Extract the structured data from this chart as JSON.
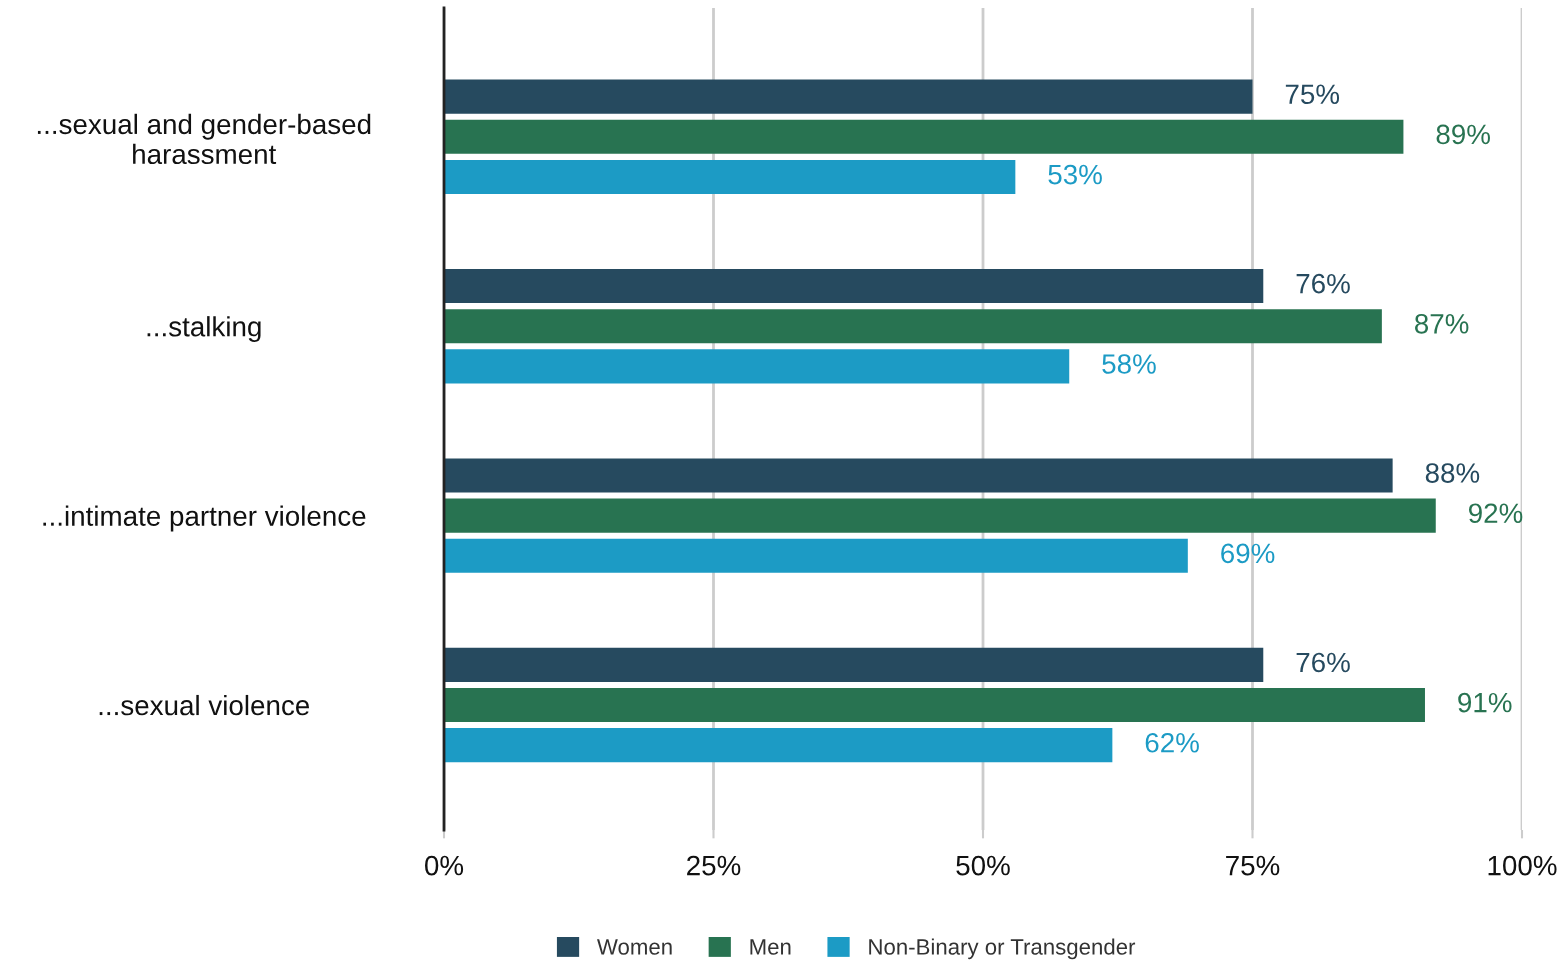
{
  "chart_data": {
    "type": "bar",
    "orientation": "horizontal",
    "categories": [
      "...sexual and gender-based\nharassment",
      "...stalking",
      "...intimate partner violence",
      "...sexual violence"
    ],
    "series": [
      {
        "name": "Women",
        "color": "#264a5f",
        "values": [
          75,
          76,
          88,
          76
        ],
        "value_labels": [
          "75%",
          "76%",
          "88%",
          "76%"
        ]
      },
      {
        "name": "Men",
        "color": "#287351",
        "values": [
          89,
          87,
          92,
          91
        ],
        "value_labels": [
          "89%",
          "87%",
          "92%",
          "91%"
        ]
      },
      {
        "name": "Non-Binary or Transgender",
        "color": "#1c9bc5",
        "values": [
          53,
          58,
          69,
          62
        ],
        "value_labels": [
          "53%",
          "58%",
          "69%",
          "62%"
        ]
      }
    ],
    "xlim": [
      0,
      100
    ],
    "xticks": [
      {
        "value": 0,
        "label": "0%"
      },
      {
        "value": 25,
        "label": "25%"
      },
      {
        "value": 50,
        "label": "50%"
      },
      {
        "value": 75,
        "label": "75%"
      },
      {
        "value": 100,
        "label": "100%"
      }
    ],
    "grid": "x",
    "legend": "bottom"
  }
}
